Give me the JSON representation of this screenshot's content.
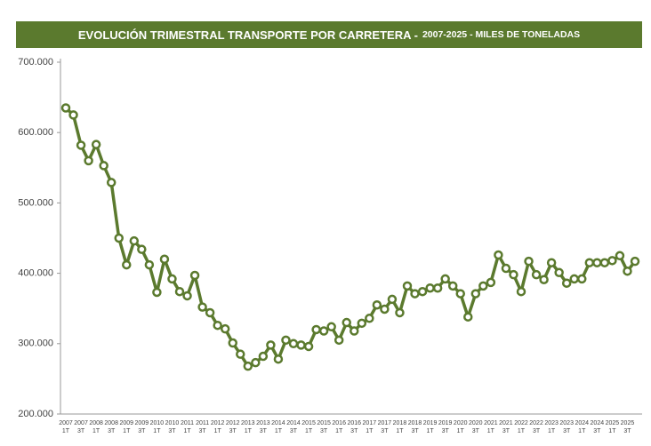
{
  "chart_data": {
    "type": "line",
    "title": "EVOLUCIÓN TRIMESTRAL TRANSPORTE POR CARRETERA -",
    "subtitle": "2007-2025 - MILES DE TONELADAS",
    "categories": [
      "2007 1T",
      null,
      "2007 3T",
      null,
      "2008 1T",
      null,
      "2008 3T",
      null,
      "2009 1T",
      null,
      "2009 3T",
      null,
      "2010 1T",
      null,
      "2010 3T",
      null,
      "2011 1T",
      null,
      "2011 3T",
      null,
      "2012 1T",
      null,
      "2012 3T",
      null,
      "2013 1T",
      null,
      "2013 3T",
      null,
      "2014 1T",
      null,
      "2014 3T",
      null,
      "2015 1T",
      null,
      "2015 3T",
      null,
      "2016 1T",
      null,
      "2016 3T",
      null,
      "2017 1T",
      null,
      "2017 3T",
      null,
      "2018 1T",
      null,
      "2018 3T",
      null,
      "2019 1T",
      null,
      "2019 3T",
      null,
      "2020 1T",
      null,
      "2020 3T",
      null,
      "2021 1T",
      null,
      "2021 3T",
      null,
      "2022 1T",
      null,
      "2022 3T",
      null,
      "2023 1T",
      null,
      "2023 3T",
      null,
      "2024 1T",
      null,
      "2024 3T",
      null,
      "2025 1T",
      null,
      "2025 3T",
      null
    ],
    "series": [
      {
        "color": "#5b7a2e",
        "values": [
          635000,
          625000,
          582000,
          560000,
          583000,
          553000,
          529000,
          450000,
          412000,
          446000,
          434000,
          412000,
          373000,
          420000,
          392000,
          374000,
          368000,
          397000,
          352000,
          344000,
          326000,
          321000,
          301000,
          285000,
          268000,
          273000,
          282000,
          298000,
          278000,
          305000,
          300000,
          298000,
          296000,
          320000,
          318000,
          324000,
          305000,
          330000,
          318000,
          329000,
          336000,
          355000,
          349000,
          363000,
          344000,
          382000,
          371000,
          374000,
          379000,
          379000,
          392000,
          382000,
          371000,
          338000,
          371000,
          382000,
          387000,
          426000,
          407000,
          398000,
          374000,
          417000,
          398000,
          391000,
          415000,
          401000,
          386000,
          392000,
          392000,
          415000,
          415000,
          415000,
          418000,
          425000,
          403000,
          417000
        ]
      }
    ],
    "ylim": [
      200000,
      700000
    ],
    "yticks": [
      {
        "value": 200000,
        "label": "200.000"
      },
      {
        "value": 300000,
        "label": "300.000"
      },
      {
        "value": 400000,
        "label": "400.000"
      },
      {
        "value": 500000,
        "label": "500.000"
      },
      {
        "value": 600000,
        "label": "600.000"
      },
      {
        "value": 700000,
        "label": "700.000"
      }
    ],
    "title_color": "#5b7a2e"
  }
}
